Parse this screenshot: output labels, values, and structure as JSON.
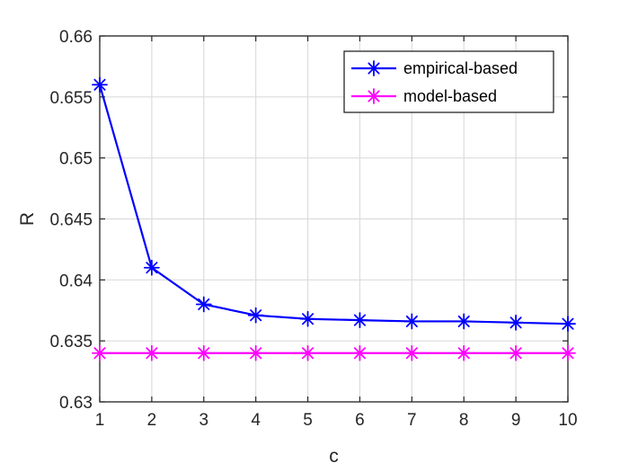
{
  "chart_data": {
    "type": "line",
    "xlabel": "c",
    "ylabel": "R",
    "x": [
      1,
      2,
      3,
      4,
      5,
      6,
      7,
      8,
      9,
      10
    ],
    "xlim": [
      1,
      10
    ],
    "ylim": [
      0.63,
      0.66
    ],
    "xticks": [
      1,
      2,
      3,
      4,
      5,
      6,
      7,
      8,
      9,
      10
    ],
    "xtick_labels": [
      "1",
      "2",
      "3",
      "4",
      "5",
      "6",
      "7",
      "8",
      "9",
      "10"
    ],
    "yticks": [
      0.63,
      0.635,
      0.64,
      0.645,
      0.65,
      0.655,
      0.66
    ],
    "ytick_labels": [
      "0.63",
      "0.635",
      "0.64",
      "0.645",
      "0.65",
      "0.655",
      "0.66"
    ],
    "grid": true,
    "legend_position": "top-right",
    "marker": "asterisk",
    "series": [
      {
        "name": "empirical-based",
        "color": "#0000ff",
        "values": [
          0.656,
          0.641,
          0.638,
          0.6371,
          0.6368,
          0.6367,
          0.6366,
          0.6366,
          0.6365,
          0.6364
        ]
      },
      {
        "name": "model-based",
        "color": "#ff00ff",
        "values": [
          0.634,
          0.634,
          0.634,
          0.634,
          0.634,
          0.634,
          0.634,
          0.634,
          0.634,
          0.634
        ]
      }
    ]
  }
}
